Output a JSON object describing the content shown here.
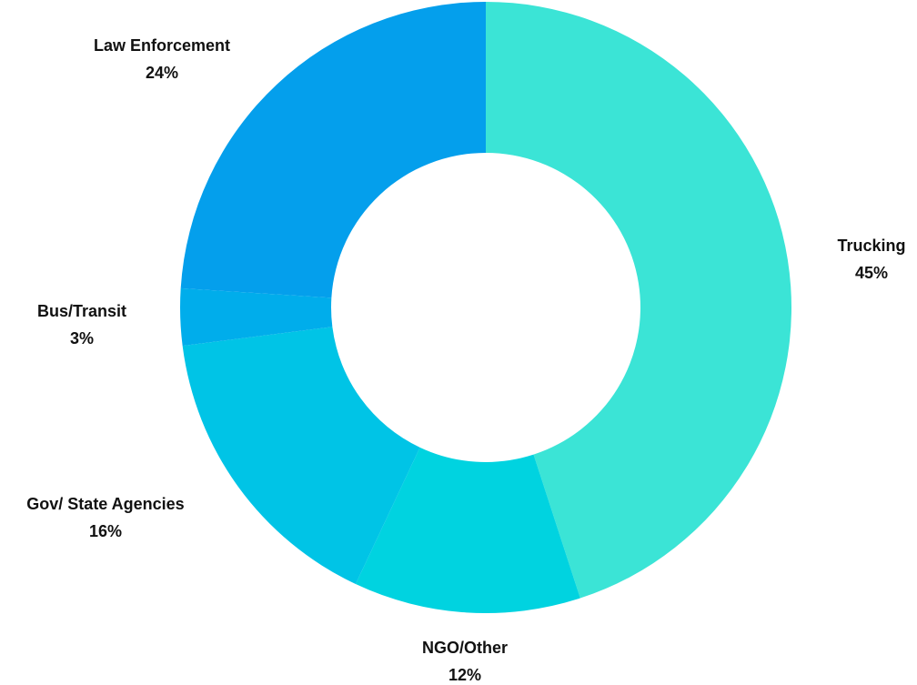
{
  "chart_data": {
    "type": "pie",
    "variant": "donut",
    "title": "",
    "slices": [
      {
        "label": "Trucking",
        "value": 45,
        "value_label": "45%",
        "color": "#3BE4D6"
      },
      {
        "label": "NGO/Other",
        "value": 12,
        "value_label": "12%",
        "color": "#00D3E0"
      },
      {
        "label": "Gov/ State Agencies",
        "value": 16,
        "value_label": "16%",
        "color": "#00C4E6"
      },
      {
        "label": "Bus/Transit",
        "value": 3,
        "value_label": "3%",
        "color": "#00ADEB"
      },
      {
        "label": "Law Enforcement",
        "value": 24,
        "value_label": "24%",
        "color": "#049FEC"
      }
    ],
    "legend": "none"
  }
}
